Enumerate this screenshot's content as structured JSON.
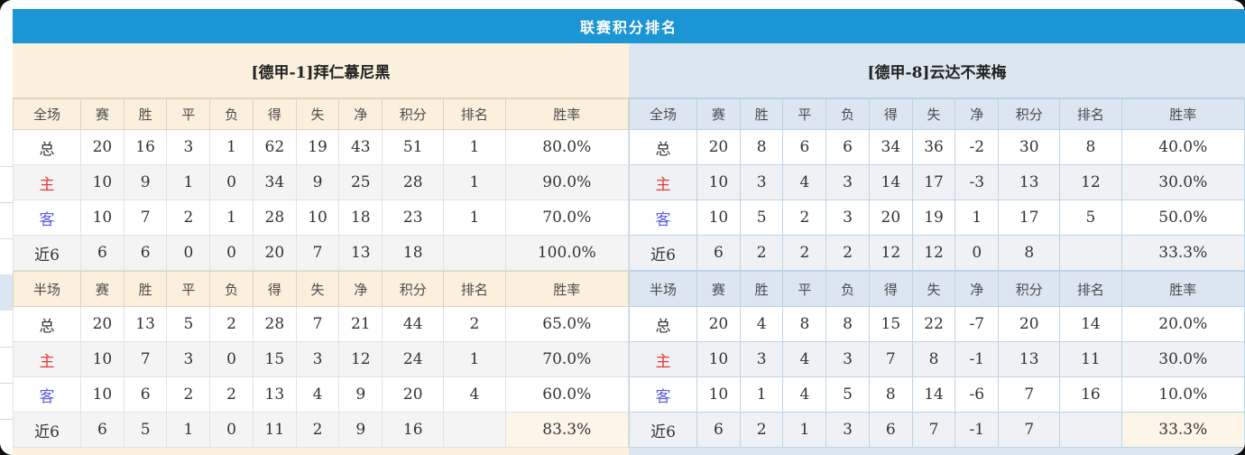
{
  "title_bar": {
    "title": "联赛积分排名"
  },
  "columns": {
    "full_scope": "全场",
    "half_scope": "半场",
    "stat_cols": [
      "赛",
      "胜",
      "平",
      "负",
      "得",
      "失",
      "净",
      "积分",
      "排名",
      "胜率"
    ]
  },
  "teams": [
    {
      "name": "[德甲-1]拜仁慕尼黑",
      "full": {
        "rows": [
          {
            "type": "total",
            "label": "总",
            "cells": [
              "20",
              "16",
              "3",
              "1",
              "62",
              "19",
              "43"
            ],
            "points": "51",
            "rank": "1",
            "rate": "80.0%"
          },
          {
            "type": "home",
            "label": "主",
            "cells": [
              "10",
              "9",
              "1",
              "0",
              "34",
              "9",
              "25"
            ],
            "points": "28",
            "rank": "1",
            "rate": "90.0%"
          },
          {
            "type": "away",
            "label": "客",
            "cells": [
              "10",
              "7",
              "2",
              "1",
              "28",
              "10",
              "18"
            ],
            "points": "23",
            "rank": "1",
            "rate": "70.0%"
          },
          {
            "type": "recent",
            "label": "近6",
            "cells": [
              "6",
              "6",
              "0",
              "0",
              "20",
              "7",
              "13"
            ],
            "points": "18",
            "rank": "",
            "rate": "100.0%"
          }
        ]
      },
      "half": {
        "rows": [
          {
            "type": "total",
            "label": "总",
            "cells": [
              "20",
              "13",
              "5",
              "2",
              "28",
              "7",
              "21"
            ],
            "points": "44",
            "rank": "2",
            "rate": "65.0%"
          },
          {
            "type": "home",
            "label": "主",
            "cells": [
              "10",
              "7",
              "3",
              "0",
              "15",
              "3",
              "12"
            ],
            "points": "24",
            "rank": "1",
            "rate": "70.0%"
          },
          {
            "type": "away",
            "label": "客",
            "cells": [
              "10",
              "6",
              "2",
              "2",
              "13",
              "4",
              "9"
            ],
            "points": "20",
            "rank": "4",
            "rate": "60.0%"
          },
          {
            "type": "recent",
            "label": "近6",
            "cells": [
              "6",
              "5",
              "1",
              "0",
              "11",
              "2",
              "9"
            ],
            "points": "16",
            "rank": "",
            "rate": "83.3%"
          }
        ]
      }
    },
    {
      "name": "[德甲-8]云达不莱梅",
      "full": {
        "rows": [
          {
            "type": "total",
            "label": "总",
            "cells": [
              "20",
              "8",
              "6",
              "6",
              "34",
              "36",
              "-2"
            ],
            "points": "30",
            "rank": "8",
            "rate": "40.0%"
          },
          {
            "type": "home",
            "label": "主",
            "cells": [
              "10",
              "3",
              "4",
              "3",
              "14",
              "17",
              "-3"
            ],
            "points": "13",
            "rank": "12",
            "rate": "30.0%"
          },
          {
            "type": "away",
            "label": "客",
            "cells": [
              "10",
              "5",
              "2",
              "3",
              "20",
              "19",
              "1"
            ],
            "points": "17",
            "rank": "5",
            "rate": "50.0%"
          },
          {
            "type": "recent",
            "label": "近6",
            "cells": [
              "6",
              "2",
              "2",
              "2",
              "12",
              "12",
              "0"
            ],
            "points": "8",
            "rank": "",
            "rate": "33.3%"
          }
        ]
      },
      "half": {
        "rows": [
          {
            "type": "total",
            "label": "总",
            "cells": [
              "20",
              "4",
              "8",
              "8",
              "15",
              "22",
              "-7"
            ],
            "points": "20",
            "rank": "14",
            "rate": "20.0%"
          },
          {
            "type": "home",
            "label": "主",
            "cells": [
              "10",
              "3",
              "4",
              "3",
              "7",
              "8",
              "-1"
            ],
            "points": "13",
            "rank": "11",
            "rate": "30.0%"
          },
          {
            "type": "away",
            "label": "客",
            "cells": [
              "10",
              "1",
              "4",
              "5",
              "8",
              "14",
              "-6"
            ],
            "points": "7",
            "rank": "16",
            "rate": "10.0%"
          },
          {
            "type": "recent",
            "label": "近6",
            "cells": [
              "6",
              "2",
              "1",
              "3",
              "6",
              "7",
              "-1"
            ],
            "points": "7",
            "rank": "",
            "rate": "33.3%"
          }
        ]
      }
    }
  ],
  "colors": {
    "title_bar_blue": "#1c95d4",
    "left_panel_cream": "#faf0dc",
    "right_panel_blue": "#dce6f0",
    "points_red": "#f44321",
    "win_rate_red": "#f44321",
    "rank_blue": "#3f8fdc",
    "home_label_red": "#e23b3b",
    "away_label_blue": "#5a5ae0",
    "left_stripe": "#f4f4f5",
    "right_stripe": "#eff1f4"
  }
}
